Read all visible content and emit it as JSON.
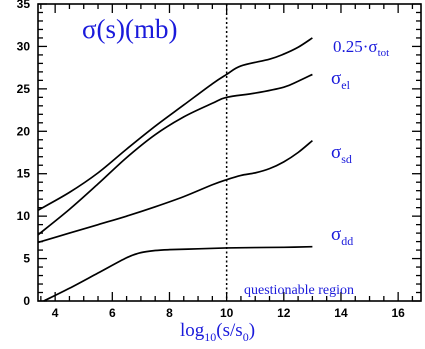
{
  "chart_data": {
    "type": "line",
    "title": "σ(s)(mb)",
    "xlabel": "log10(s/s0)",
    "xlabel_parts": {
      "main": "log",
      "sub1": "10",
      "mid": "(s/s",
      "sub2": "0",
      "end": ")"
    },
    "ylabel": "",
    "xlim": [
      3.4,
      16.8
    ],
    "ylim": [
      0,
      35
    ],
    "x_ticks": [
      4,
      6,
      8,
      10,
      12,
      14,
      16
    ],
    "y_ticks": [
      0,
      5,
      10,
      15,
      20,
      25,
      30,
      35
    ],
    "x_tick_labels": [
      "4",
      "6",
      "8",
      "10",
      "12",
      "14",
      "16"
    ],
    "y_tick_labels": [
      "0",
      "5",
      "10",
      "15",
      "20",
      "25",
      "30",
      "35"
    ],
    "grid": false,
    "vline": {
      "x": 10,
      "style": "dotted"
    },
    "annotation": "questionable region",
    "series": [
      {
        "name": "0.25·σtot",
        "label_parts": {
          "prefix": "0.25·σ",
          "sub": "tot"
        },
        "x": [
          3.4,
          4.5,
          5.5,
          6.5,
          7.5,
          8.5,
          9.5,
          10.0,
          10.5,
          11.5,
          12.0,
          12.5,
          13.0
        ],
        "y": [
          10.7,
          12.8,
          15.1,
          17.9,
          20.6,
          23.1,
          25.6,
          26.7,
          27.7,
          28.5,
          29.1,
          29.9,
          31.0
        ]
      },
      {
        "name": "σel",
        "label_parts": {
          "prefix": "σ",
          "sub": "el"
        },
        "x": [
          3.4,
          4.5,
          5.5,
          6.5,
          7.5,
          8.5,
          9.5,
          10.0,
          11.0,
          12.0,
          12.5,
          13.0
        ],
        "y": [
          7.8,
          10.8,
          13.8,
          16.9,
          19.6,
          21.7,
          23.3,
          24.0,
          24.5,
          25.2,
          25.9,
          26.7
        ]
      },
      {
        "name": "σsd",
        "label_parts": {
          "prefix": "σ",
          "sub": "sd"
        },
        "x": [
          3.4,
          4.5,
          5.5,
          6.5,
          7.5,
          8.5,
          9.5,
          10.0,
          10.5,
          11.0,
          11.5,
          12.0,
          12.5,
          13.0
        ],
        "y": [
          6.9,
          8.0,
          9.0,
          10.0,
          11.1,
          12.3,
          13.7,
          14.3,
          14.8,
          15.1,
          15.6,
          16.4,
          17.5,
          18.9
        ]
      },
      {
        "name": "σdd",
        "label_parts": {
          "prefix": "σ",
          "sub": "dd"
        },
        "x": [
          3.6,
          4.5,
          5.5,
          6.5,
          7.0,
          7.5,
          8.0,
          9.0,
          10.0,
          11.0,
          12.0,
          13.0
        ],
        "y": [
          0.0,
          1.5,
          3.3,
          5.1,
          5.7,
          5.95,
          6.05,
          6.15,
          6.25,
          6.3,
          6.33,
          6.4
        ]
      }
    ],
    "colors": {
      "curves": "#000000",
      "text": "#1a1adb",
      "axes": "#000000"
    }
  }
}
